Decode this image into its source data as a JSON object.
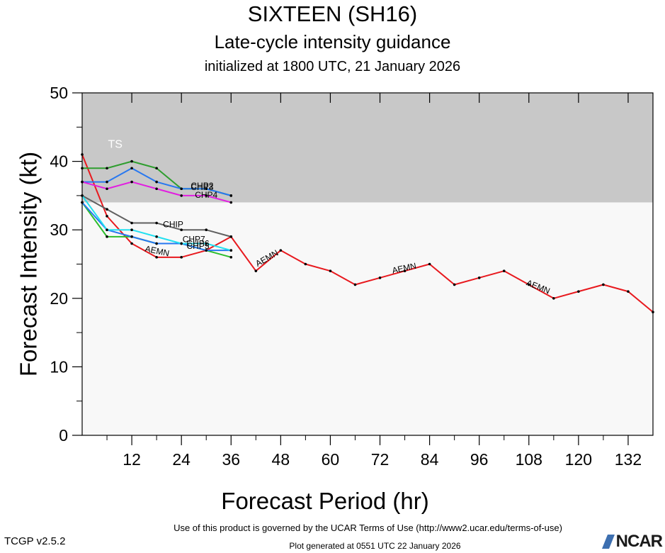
{
  "header": {
    "title": "SIXTEEN (SH16)",
    "subtitle": "Late-cycle intensity guidance",
    "initialized": "initialized at 1800 UTC, 21 January 2026"
  },
  "footer": {
    "terms": "Use of this product is governed by the UCAR Terms of Use (http://www2.ucar.edu/terms-of-use)",
    "version": "TCGP v2.5.2",
    "generated": "Plot generated at 0551 UTC   22 January 2026",
    "logo": "NCAR"
  },
  "chart_data": {
    "type": "line",
    "xlabel": "Forecast Period (hr)",
    "ylabel": "Forecast Intensity (kt)",
    "xlim": [
      0,
      138
    ],
    "ylim": [
      0,
      50
    ],
    "xticks": [
      12,
      24,
      36,
      48,
      60,
      72,
      84,
      96,
      108,
      120,
      132
    ],
    "yticks": [
      0,
      10,
      20,
      30,
      40,
      50
    ],
    "bands": [
      {
        "label": "TS",
        "from": 34,
        "to": 50,
        "color": "#c8c8c8"
      },
      {
        "label": "",
        "from": 0,
        "to": 34,
        "color": "#f8f8f8"
      }
    ],
    "series": [
      {
        "name": "AEMN",
        "color": "#e8191e",
        "x": [
          0,
          6,
          12,
          18,
          24,
          30,
          36,
          42,
          48,
          54,
          60,
          66,
          72,
          78,
          84,
          90,
          96,
          102,
          108,
          114,
          120,
          126,
          132,
          138
        ],
        "y": [
          41,
          32,
          28,
          26,
          26,
          27,
          29,
          24,
          27,
          25,
          24,
          22,
          23,
          24,
          25,
          22,
          23,
          24,
          22,
          20,
          21,
          22,
          21,
          18
        ]
      },
      {
        "name": "CHIP",
        "color": "#606060",
        "x": [
          0,
          6,
          12,
          18,
          24,
          30,
          36
        ],
        "y": [
          35,
          33,
          31,
          31,
          30,
          30,
          29
        ]
      },
      {
        "name": "CHP2",
        "color": "#2f9e2f",
        "x": [
          0,
          6,
          12,
          18,
          24,
          30,
          36
        ],
        "y": [
          39,
          39,
          40,
          39,
          36,
          36,
          35
        ]
      },
      {
        "name": "CHP3",
        "color": "#2878f0",
        "x": [
          0,
          6,
          12,
          18,
          24,
          30,
          36
        ],
        "y": [
          37,
          37,
          39,
          37,
          36,
          36,
          35
        ]
      },
      {
        "name": "CHP4",
        "color": "#e21ee0",
        "x": [
          0,
          6,
          12,
          18,
          24,
          30,
          36
        ],
        "y": [
          37,
          36,
          37,
          36,
          35,
          35,
          34
        ]
      },
      {
        "name": "CHP5",
        "color": "#2dbe2d",
        "x": [
          0,
          6,
          12,
          18,
          24,
          30,
          36
        ],
        "y": [
          34,
          29,
          29,
          28,
          28,
          27,
          26
        ]
      },
      {
        "name": "CHP6",
        "color": "#2878f0",
        "x": [
          0,
          6,
          12,
          18,
          24,
          30,
          36
        ],
        "y": [
          34,
          30,
          29,
          28,
          28,
          27,
          27
        ]
      },
      {
        "name": "CHP7",
        "color": "#22e0f0",
        "x": [
          0,
          6,
          12,
          18,
          24,
          30,
          36
        ],
        "y": [
          35,
          30,
          30,
          29,
          28,
          28,
          27
        ]
      }
    ],
    "labels": [
      {
        "text": "TS",
        "x": 8,
        "y": 42
      },
      {
        "text": "AEMN",
        "x": 18,
        "y": 26.5,
        "rot": 12
      },
      {
        "text": "AEMN",
        "x": 45,
        "y": 25.5,
        "rot": -30
      },
      {
        "text": "AEMN",
        "x": 78,
        "y": 24,
        "rot": -12
      },
      {
        "text": "AEMN",
        "x": 110,
        "y": 21.3,
        "rot": 22
      },
      {
        "text": "CHIP",
        "x": 22,
        "y": 30.4,
        "rot": 0
      },
      {
        "text": "CHP7",
        "x": 27,
        "y": 28.2,
        "rot": 0
      },
      {
        "text": "CHP5",
        "x": 28,
        "y": 27.2,
        "rot": 0
      },
      {
        "text": "CHP6",
        "x": 28,
        "y": 27.6,
        "rot": 0
      },
      {
        "text": "CHP2",
        "x": 29,
        "y": 36,
        "rot": 0
      },
      {
        "text": "CHP3",
        "x": 29,
        "y": 35.8,
        "rot": 0
      },
      {
        "text": "CHP4",
        "x": 30,
        "y": 34.7,
        "rot": 0
      }
    ]
  }
}
